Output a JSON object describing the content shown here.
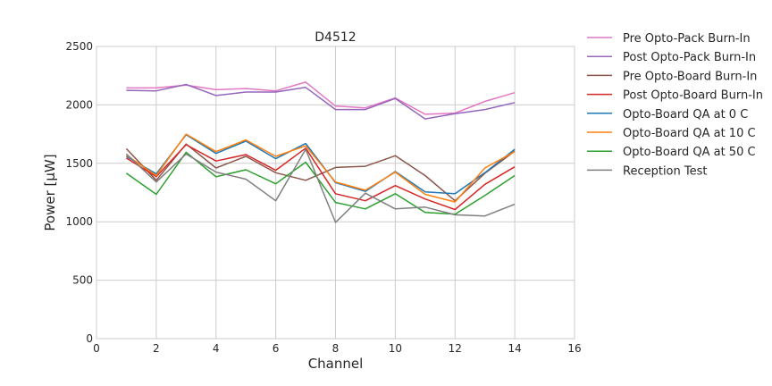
{
  "chart_data": {
    "type": "line",
    "title": "D4512",
    "xlabel": "Channel",
    "ylabel": "Power [μW]",
    "xlim": [
      0,
      16
    ],
    "ylim": [
      0,
      2500
    ],
    "xticks": [
      "0",
      "2",
      "4",
      "6",
      "8",
      "10",
      "12",
      "14",
      "16"
    ],
    "yticks": [
      "0",
      "500",
      "1000",
      "1500",
      "2000",
      "2500"
    ],
    "grid": true,
    "legend_position": "outside-right",
    "x": [
      1,
      2,
      3,
      4,
      5,
      6,
      7,
      8,
      9,
      10,
      11,
      12,
      13,
      14
    ],
    "series": [
      {
        "name": "Pre Opto-Pack Burn-In",
        "color": "#e377c2",
        "values": [
          2145,
          2145,
          2170,
          2130,
          2140,
          2120,
          2195,
          1990,
          1975,
          2060,
          1920,
          1930,
          2030,
          2105
        ]
      },
      {
        "name": "Post Opto-Pack Burn-In",
        "color": "#9467bd",
        "values": [
          2125,
          2120,
          2175,
          2080,
          2110,
          2110,
          2150,
          1960,
          1960,
          2055,
          1880,
          1925,
          1960,
          2020
        ]
      },
      {
        "name": "Pre Opto-Board Burn-In",
        "color": "#8c564b",
        "values": [
          1625,
          1355,
          1665,
          1460,
          1560,
          1420,
          1355,
          1465,
          1475,
          1565,
          1395,
          1180,
          1415,
          1605
        ]
      },
      {
        "name": "Post Opto-Board Burn-In",
        "color": "#d62728",
        "values": [
          1545,
          1385,
          1660,
          1520,
          1575,
          1440,
          1630,
          1240,
          1180,
          1310,
          1195,
          1105,
          1320,
          1470
        ]
      },
      {
        "name": "Opto-Board QA at 0 C",
        "color": "#1f77b4",
        "values": [
          1560,
          1410,
          1745,
          1585,
          1690,
          1540,
          1670,
          1335,
          1260,
          1430,
          1255,
          1240,
          1420,
          1620
        ]
      },
      {
        "name": "Opto-Board QA at 10 C",
        "color": "#ff7f0e",
        "values": [
          1570,
          1395,
          1750,
          1600,
          1700,
          1560,
          1650,
          1340,
          1270,
          1425,
          1235,
          1170,
          1460,
          1600
        ]
      },
      {
        "name": "Opto-Board QA at 50 C",
        "color": "#2ca02c",
        "values": [
          1415,
          1235,
          1595,
          1385,
          1445,
          1325,
          1510,
          1165,
          1110,
          1240,
          1080,
          1065,
          1225,
          1395
        ]
      },
      {
        "name": "Reception Test",
        "color": "#7f7f7f",
        "values": [
          1580,
          1340,
          1580,
          1425,
          1365,
          1180,
          1620,
          995,
          1245,
          1110,
          1125,
          1060,
          1050,
          1150
        ]
      }
    ]
  }
}
